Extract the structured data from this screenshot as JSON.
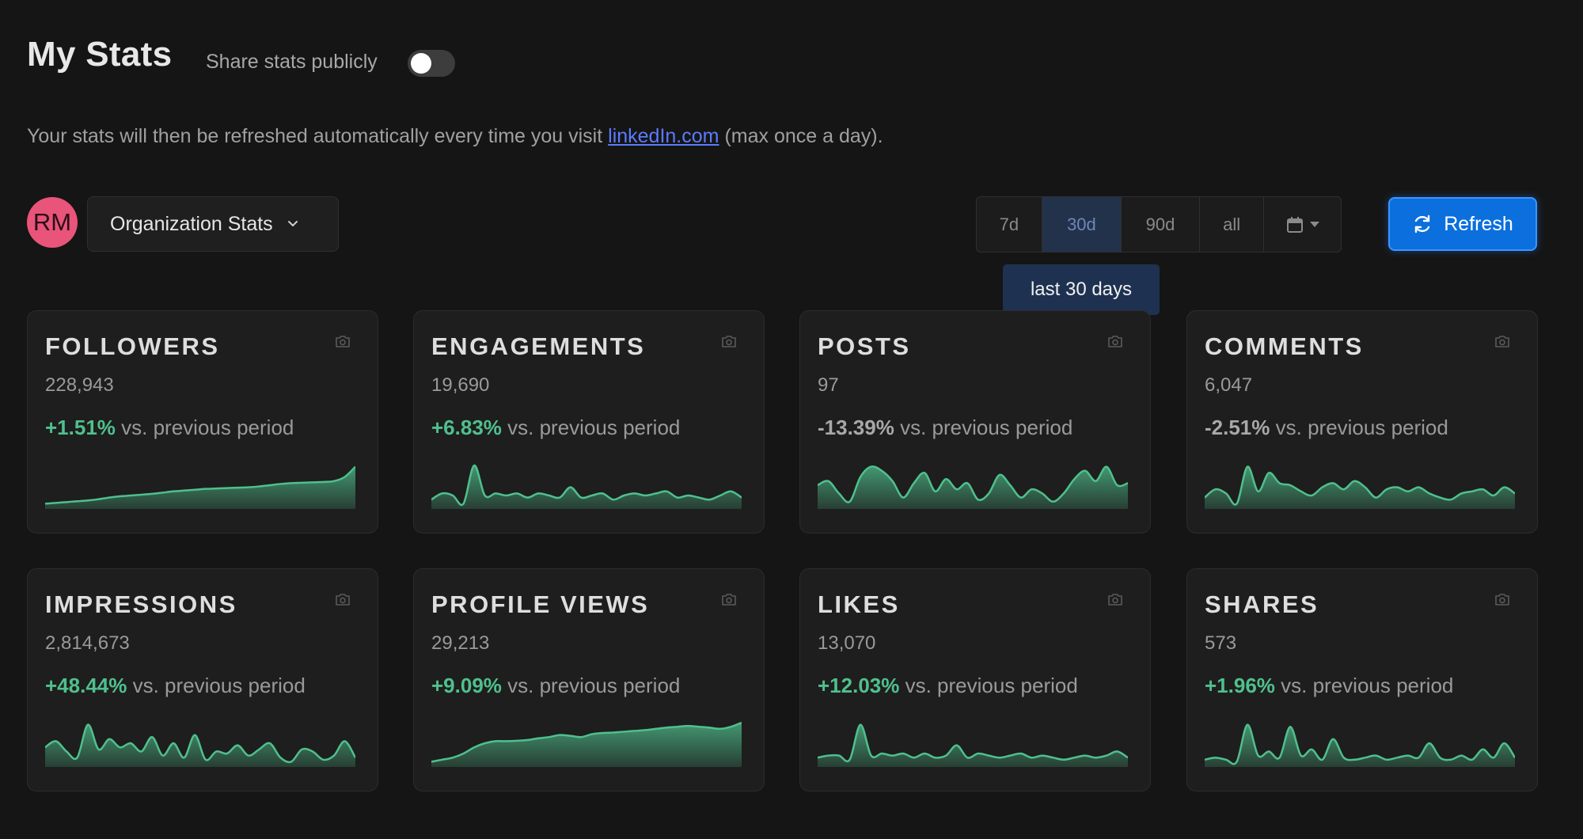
{
  "header": {
    "title": "My Stats",
    "share_label": "Share stats publicly",
    "share_enabled": false
  },
  "info": {
    "prefix": "Your stats will then be refreshed automatically every time you visit ",
    "link_text": "linkedIn.com",
    "suffix": " (max once a day)."
  },
  "controls": {
    "avatar_initials": "RM",
    "org_select_label": "Organization Stats",
    "ranges": [
      {
        "label": "7d",
        "active": false
      },
      {
        "label": "30d",
        "active": true
      },
      {
        "label": "90d",
        "active": false
      },
      {
        "label": "all",
        "active": false
      }
    ],
    "tooltip": "last 30 days",
    "refresh_label": "Refresh"
  },
  "colors": {
    "accent_green": "#4fc08d",
    "refresh_blue": "#0b6fdd",
    "avatar_pink": "#e8547a",
    "link_blue": "#5b7bff"
  },
  "cards": [
    {
      "title": "FOLLOWERS",
      "value": "228,943",
      "change": "+1.51%",
      "suffix": "vs. previous period",
      "positive": true,
      "spark": [
        0.05,
        0.07,
        0.09,
        0.11,
        0.13,
        0.16,
        0.2,
        0.23,
        0.25,
        0.27,
        0.29,
        0.32,
        0.35,
        0.37,
        0.39,
        0.41,
        0.42,
        0.43,
        0.44,
        0.45,
        0.47,
        0.5,
        0.53,
        0.55,
        0.56,
        0.57,
        0.58,
        0.6,
        0.7,
        0.95
      ]
    },
    {
      "title": "ENGAGEMENTS",
      "value": "19,690",
      "change": "+6.83%",
      "suffix": "vs. previous period",
      "positive": true,
      "spark": [
        0.15,
        0.3,
        0.25,
        0.05,
        0.98,
        0.25,
        0.3,
        0.25,
        0.3,
        0.2,
        0.3,
        0.25,
        0.2,
        0.45,
        0.2,
        0.25,
        0.3,
        0.15,
        0.25,
        0.3,
        0.25,
        0.3,
        0.35,
        0.2,
        0.25,
        0.2,
        0.15,
        0.25,
        0.35,
        0.2
      ]
    },
    {
      "title": "POSTS",
      "value": "97",
      "change": "-13.39%",
      "suffix": "vs. previous period",
      "positive": false,
      "spark": [
        0.5,
        0.6,
        0.3,
        0.1,
        0.7,
        0.95,
        0.85,
        0.6,
        0.2,
        0.55,
        0.8,
        0.35,
        0.65,
        0.4,
        0.55,
        0.15,
        0.3,
        0.75,
        0.5,
        0.2,
        0.4,
        0.3,
        0.1,
        0.3,
        0.65,
        0.85,
        0.6,
        0.95,
        0.5,
        0.55
      ]
    },
    {
      "title": "COMMENTS",
      "value": "6,047",
      "change": "-2.51%",
      "suffix": "vs. previous period",
      "positive": false,
      "spark": [
        0.2,
        0.4,
        0.3,
        0.05,
        0.95,
        0.35,
        0.8,
        0.55,
        0.5,
        0.35,
        0.25,
        0.45,
        0.55,
        0.4,
        0.6,
        0.45,
        0.2,
        0.4,
        0.45,
        0.35,
        0.45,
        0.3,
        0.2,
        0.15,
        0.3,
        0.35,
        0.4,
        0.25,
        0.45,
        0.3
      ]
    },
    {
      "title": "IMPRESSIONS",
      "value": "2,814,673",
      "change": "+48.44%",
      "suffix": "vs. previous period",
      "positive": true,
      "spark": [
        0.4,
        0.55,
        0.3,
        0.15,
        0.95,
        0.35,
        0.6,
        0.4,
        0.5,
        0.3,
        0.65,
        0.2,
        0.5,
        0.15,
        0.7,
        0.1,
        0.3,
        0.25,
        0.45,
        0.2,
        0.35,
        0.5,
        0.15,
        0.05,
        0.35,
        0.3,
        0.1,
        0.2,
        0.55,
        0.15
      ]
    },
    {
      "title": "PROFILE VIEWS",
      "value": "29,213",
      "change": "+9.09%",
      "suffix": "vs. previous period",
      "positive": true,
      "spark": [
        0.05,
        0.1,
        0.15,
        0.25,
        0.4,
        0.5,
        0.55,
        0.55,
        0.56,
        0.58,
        0.62,
        0.65,
        0.7,
        0.68,
        0.65,
        0.72,
        0.75,
        0.76,
        0.78,
        0.8,
        0.82,
        0.85,
        0.88,
        0.9,
        0.92,
        0.9,
        0.88,
        0.85,
        0.9,
        1.0
      ]
    },
    {
      "title": "LIKES",
      "value": "13,070",
      "change": "+12.03%",
      "suffix": "vs. previous period",
      "positive": true,
      "spark": [
        0.15,
        0.2,
        0.2,
        0.1,
        0.95,
        0.2,
        0.25,
        0.2,
        0.25,
        0.15,
        0.25,
        0.15,
        0.2,
        0.45,
        0.15,
        0.25,
        0.2,
        0.15,
        0.2,
        0.25,
        0.15,
        0.2,
        0.15,
        0.1,
        0.15,
        0.2,
        0.15,
        0.2,
        0.3,
        0.15
      ]
    },
    {
      "title": "SHARES",
      "value": "573",
      "change": "+1.96%",
      "suffix": "vs. previous period",
      "positive": true,
      "spark": [
        0.1,
        0.15,
        0.1,
        0.05,
        0.95,
        0.2,
        0.3,
        0.15,
        0.9,
        0.2,
        0.35,
        0.1,
        0.6,
        0.15,
        0.1,
        0.15,
        0.2,
        0.1,
        0.15,
        0.2,
        0.15,
        0.5,
        0.15,
        0.1,
        0.2,
        0.1,
        0.35,
        0.15,
        0.5,
        0.15
      ]
    }
  ]
}
